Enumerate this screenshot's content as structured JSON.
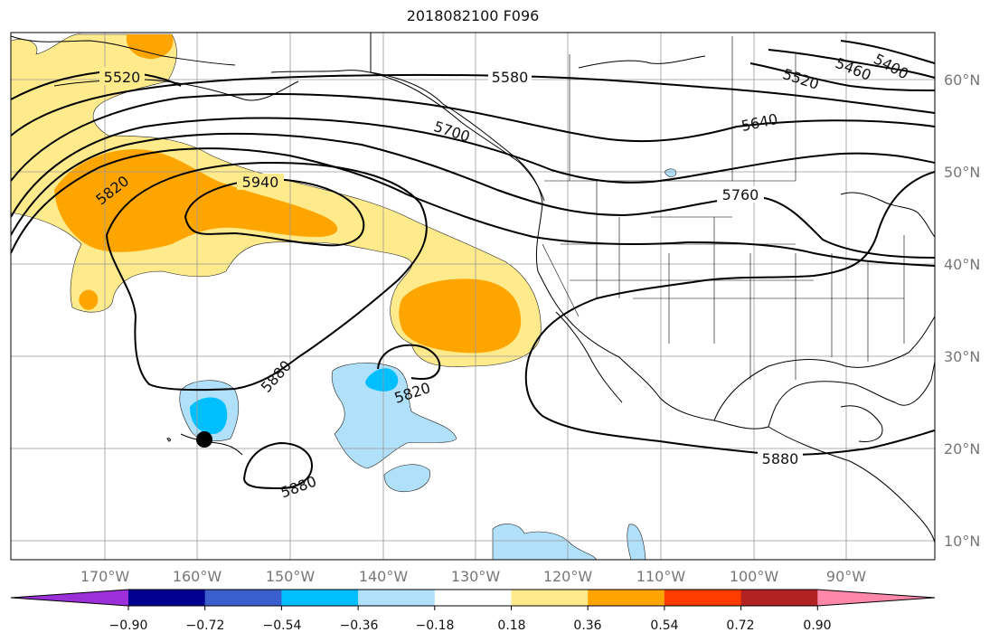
{
  "title": "2018082100 F096",
  "lon_labels": [
    "170°W",
    "160°W",
    "150°W",
    "140°W",
    "130°W",
    "120°W",
    "110°W",
    "100°W",
    "90°W"
  ],
  "lat_labels": [
    "60°N",
    "50°N",
    "40°N",
    "30°N",
    "20°N",
    "10°N"
  ],
  "contour_labels": [
    "5520",
    "5580",
    "5520",
    "5460",
    "5400",
    "5700",
    "5640",
    "5820",
    "5940",
    "5760",
    "5880",
    "5820",
    "5880",
    "5880"
  ],
  "colorbar": {
    "ticks": [
      "−0.90",
      "−0.72",
      "−0.54",
      "−0.36",
      "−0.18",
      "0.18",
      "0.36",
      "0.54",
      "0.72",
      "0.90"
    ],
    "colors": [
      "#9b30d9",
      "#000090",
      "#3a5fcd",
      "#00bfff",
      "#b0e0fa",
      "#ffffff",
      "#ffeb8c",
      "#ffa500",
      "#ff3c00",
      "#b22222",
      "#ff88aa"
    ]
  },
  "colors": {
    "light_yellow": "#ffeb8c",
    "orange": "#ffa500",
    "light_blue": "#b0e0fa",
    "blue": "#00bfff"
  }
}
